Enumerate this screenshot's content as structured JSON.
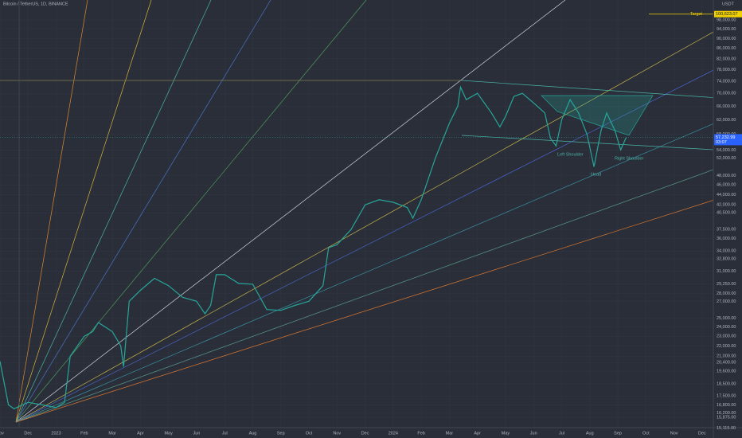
{
  "chart_data": {
    "type": "line",
    "title": "Bitcoin / TetherUS, 1D, BINANCE",
    "currency": "USDT",
    "log_scale": true,
    "grid": true,
    "color": "#26a69a",
    "xlim": [
      0,
      25.4
    ],
    "xticks": [
      {
        "value": 0,
        "label": "Nov"
      },
      {
        "value": 1,
        "label": "Dec"
      },
      {
        "value": 2,
        "label": "2023"
      },
      {
        "value": 3,
        "label": "Feb"
      },
      {
        "value": 4,
        "label": "Mar"
      },
      {
        "value": 5,
        "label": "Apr"
      },
      {
        "value": 6,
        "label": "May"
      },
      {
        "value": 7,
        "label": "Jun"
      },
      {
        "value": 8,
        "label": "Jul"
      },
      {
        "value": 9,
        "label": "Aug"
      },
      {
        "value": 10,
        "label": "Sep"
      },
      {
        "value": 11,
        "label": "Oct"
      },
      {
        "value": 12,
        "label": "Nov"
      },
      {
        "value": 13,
        "label": "Dec"
      },
      {
        "value": 14,
        "label": "2024"
      },
      {
        "value": 15,
        "label": "Feb"
      },
      {
        "value": 16,
        "label": "Mar"
      },
      {
        "value": 17,
        "label": "Apr"
      },
      {
        "value": 18,
        "label": "May"
      },
      {
        "value": 19,
        "label": "Jun"
      },
      {
        "value": 20,
        "label": "Jul"
      },
      {
        "value": 21,
        "label": "Aug"
      },
      {
        "value": 22,
        "label": "Sep"
      },
      {
        "value": 23,
        "label": "Oct"
      },
      {
        "value": 24,
        "label": "Nov"
      },
      {
        "value": 25,
        "label": "Dec"
      }
    ],
    "ylim": [
      14700,
      105400
    ],
    "yticks": [
      {
        "value": 98000,
        "label": "98,000.00"
      },
      {
        "value": 94000,
        "label": "94,000.00"
      },
      {
        "value": 90000,
        "label": "90,000.00"
      },
      {
        "value": 86000,
        "label": "86,000.00"
      },
      {
        "value": 82000,
        "label": "82,000.00"
      },
      {
        "value": 78000,
        "label": "78,000.00"
      },
      {
        "value": 74000,
        "label": "74,000.00"
      },
      {
        "value": 70000,
        "label": "70,000.00"
      },
      {
        "value": 66000,
        "label": "66,000.00"
      },
      {
        "value": 62000,
        "label": "62,000.00"
      },
      {
        "value": 58000,
        "label": "58,000.00"
      },
      {
        "value": 54000,
        "label": "54,000.00"
      },
      {
        "value": 52000,
        "label": "52,000.00"
      },
      {
        "value": 48000,
        "label": "48,000.00"
      },
      {
        "value": 46000,
        "label": "46,000.00"
      },
      {
        "value": 44000,
        "label": "44,000.00"
      },
      {
        "value": 42000,
        "label": "42,000.00"
      },
      {
        "value": 40500,
        "label": "40,500.00"
      },
      {
        "value": 37500,
        "label": "37,500.00"
      },
      {
        "value": 36000,
        "label": "36,000.00"
      },
      {
        "value": 34000,
        "label": "34,000.00"
      },
      {
        "value": 32800,
        "label": "32,800.00"
      },
      {
        "value": 31000,
        "label": "31,000.00"
      },
      {
        "value": 29250,
        "label": "29,250.00"
      },
      {
        "value": 28000,
        "label": "28,000.00"
      },
      {
        "value": 27000,
        "label": "27,000.00"
      },
      {
        "value": 25000,
        "label": "25,000.00"
      },
      {
        "value": 24000,
        "label": "24,000.00"
      },
      {
        "value": 23000,
        "label": "23,000.00"
      },
      {
        "value": 22000,
        "label": "22,000.00"
      },
      {
        "value": 21000,
        "label": "21,000.00"
      },
      {
        "value": 20400,
        "label": "20,400.00"
      },
      {
        "value": 19600,
        "label": "19,600.00"
      },
      {
        "value": 18500,
        "label": "18,500.00"
      },
      {
        "value": 17500,
        "label": "17,500.00"
      },
      {
        "value": 16800,
        "label": "16,800.00"
      },
      {
        "value": 16200,
        "label": "16,200.00"
      },
      {
        "value": 15875,
        "label": "15,875.00"
      },
      {
        "value": 15115,
        "label": "15,115.00"
      }
    ],
    "x": [
      0,
      0.3,
      0.5,
      1.0,
      1.5,
      2.0,
      2.3,
      2.5,
      3.0,
      3.3,
      3.5,
      4.0,
      4.3,
      4.4,
      4.6,
      5.0,
      5.5,
      6.0,
      6.5,
      7.0,
      7.3,
      7.5,
      7.7,
      8.0,
      8.5,
      9.0,
      9.5,
      10.0,
      10.5,
      11.0,
      11.5,
      11.7,
      12.0,
      12.5,
      13.0,
      13.5,
      14.0,
      14.5,
      14.7,
      15.0,
      15.5,
      16.0,
      16.3,
      16.4,
      16.6,
      17.0,
      17.5,
      17.8,
      18.0,
      18.3,
      18.6,
      19.0,
      19.4,
      19.6,
      19.8,
      20.0,
      20.3,
      20.6,
      20.9,
      21.15,
      21.4,
      21.6,
      21.9,
      22.1,
      22.3
    ],
    "values": [
      20500,
      16800,
      16500,
      17000,
      16800,
      16600,
      17000,
      21000,
      23000,
      23500,
      24500,
      23500,
      22000,
      20000,
      27000,
      28400,
      30000,
      29000,
      27500,
      27000,
      25500,
      26500,
      30500,
      30500,
      29300,
      29200,
      26000,
      25900,
      26500,
      27000,
      29000,
      34500,
      35000,
      37500,
      42000,
      43000,
      42500,
      41500,
      39500,
      43000,
      52000,
      61000,
      66000,
      72000,
      68000,
      70000,
      64000,
      60000,
      63000,
      69000,
      70000,
      67000,
      64000,
      57000,
      55000,
      62000,
      68000,
      64000,
      58000,
      50000,
      59000,
      64000,
      59000,
      54000,
      57232.99
    ],
    "target": {
      "text": "Target",
      "value": 100623.07,
      "label": "100,623.07"
    },
    "last_price": {
      "value": 57232.99,
      "label": "57,232.99",
      "countdown": "03:07"
    },
    "annotations": [
      "Left Shoulder",
      "Head",
      "Right Shoulder"
    ]
  }
}
